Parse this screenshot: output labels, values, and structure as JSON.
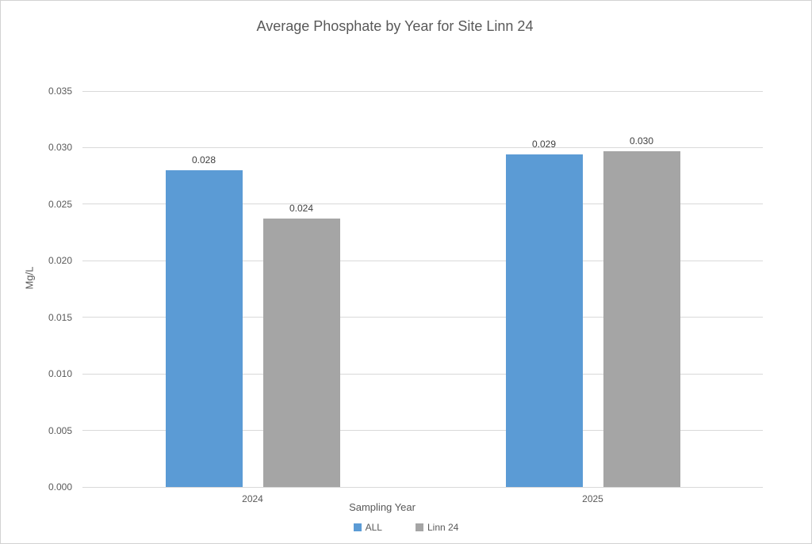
{
  "chart_data": {
    "type": "bar",
    "title": "Average Phosphate by Year for Site Linn 24",
    "xlabel": "Sampling Year",
    "ylabel": "Mg/L",
    "categories": [
      "2024",
      "2025"
    ],
    "series": [
      {
        "name": "ALL",
        "color": "#5B9BD5",
        "values": [
          0.028,
          0.0294
        ],
        "labels": [
          "0.028",
          "0.029"
        ]
      },
      {
        "name": "Linn 24",
        "color": "#A5A5A5",
        "values": [
          0.0237,
          0.0297
        ],
        "labels": [
          "0.024",
          "0.030"
        ]
      }
    ],
    "ylim": [
      0,
      0.035
    ],
    "ytick_step": 0.005,
    "ytick_labels": [
      "0.000",
      "0.005",
      "0.010",
      "0.015",
      "0.020",
      "0.025",
      "0.030",
      "0.035"
    ],
    "grid": true,
    "legend_position": "bottom"
  },
  "colors": {
    "text": "#595959",
    "data_label": "#404040",
    "gridline": "#D9D9D9",
    "border": "#D2D2D2",
    "background": "#FFFFFF"
  }
}
